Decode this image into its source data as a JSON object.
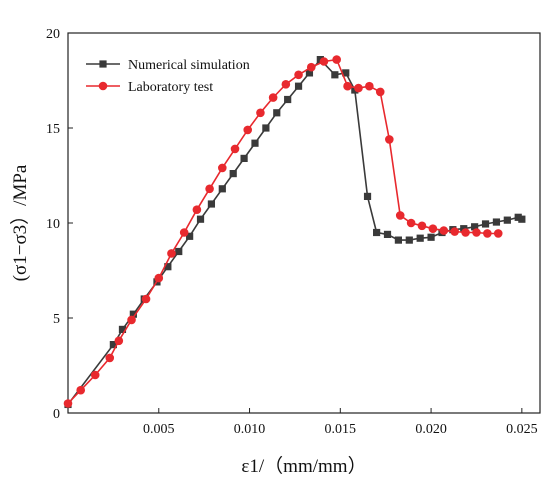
{
  "chart_data": {
    "type": "line",
    "title": "",
    "xlabel": "ε1/（mm/mm）",
    "ylabel": "(σ1−σ3）/MPa",
    "xlim": [
      0,
      0.026
    ],
    "ylim": [
      0,
      20
    ],
    "x_ticks": [
      0.005,
      0.01,
      0.015,
      0.02,
      0.025
    ],
    "x_tick_labels": [
      "0.005",
      "0.010",
      "0.015",
      "0.020",
      "0.025"
    ],
    "y_ticks": [
      0,
      5,
      10,
      15,
      20
    ],
    "y_tick_labels": [
      "0",
      "5",
      "10",
      "15",
      "20"
    ],
    "grid": false,
    "legend_position": "top-left",
    "series": [
      {
        "name": "Numerical simulation",
        "color": "#3a3a3a",
        "marker": "square",
        "x": [
          0.0,
          0.0025,
          0.003,
          0.0036,
          0.0042,
          0.0049,
          0.0055,
          0.0061,
          0.0067,
          0.0073,
          0.0079,
          0.0085,
          0.0091,
          0.0097,
          0.0103,
          0.0109,
          0.0115,
          0.0121,
          0.0127,
          0.0133,
          0.0139,
          0.0147,
          0.0153,
          0.0158,
          0.0165,
          0.017,
          0.0176,
          0.0182,
          0.0188,
          0.0194,
          0.02,
          0.0206,
          0.0212,
          0.0218,
          0.0224,
          0.023,
          0.0236,
          0.0242,
          0.0248,
          0.025
        ],
        "y": [
          0.45,
          3.6,
          4.4,
          5.2,
          6.0,
          6.9,
          7.7,
          8.5,
          9.3,
          10.2,
          11.0,
          11.8,
          12.6,
          13.4,
          14.2,
          15.0,
          15.8,
          16.5,
          17.2,
          17.9,
          18.6,
          17.8,
          17.9,
          17.0,
          11.4,
          9.5,
          9.4,
          9.1,
          9.1,
          9.2,
          9.25,
          9.5,
          9.65,
          9.7,
          9.8,
          9.95,
          10.05,
          10.15,
          10.3,
          10.2
        ]
      },
      {
        "name": "Laboratory test",
        "color": "#e8292e",
        "marker": "circle",
        "x": [
          0.0,
          0.0007,
          0.0015,
          0.0023,
          0.0028,
          0.0035,
          0.0043,
          0.005,
          0.0057,
          0.0064,
          0.0071,
          0.0078,
          0.0085,
          0.0092,
          0.0099,
          0.0106,
          0.0113,
          0.012,
          0.0127,
          0.0134,
          0.0141,
          0.0148,
          0.0154,
          0.016,
          0.0166,
          0.0172,
          0.0177,
          0.0183,
          0.0189,
          0.0195,
          0.0201,
          0.0207,
          0.0213,
          0.0219,
          0.0225,
          0.0231,
          0.0237
        ],
        "y": [
          0.5,
          1.2,
          2.0,
          2.9,
          3.8,
          4.9,
          6.0,
          7.1,
          8.4,
          9.5,
          10.7,
          11.8,
          12.9,
          13.9,
          14.9,
          15.8,
          16.6,
          17.3,
          17.8,
          18.2,
          18.5,
          18.6,
          17.2,
          17.1,
          17.2,
          16.9,
          14.4,
          10.4,
          10.0,
          9.85,
          9.7,
          9.6,
          9.55,
          9.5,
          9.5,
          9.45,
          9.45
        ]
      }
    ]
  }
}
